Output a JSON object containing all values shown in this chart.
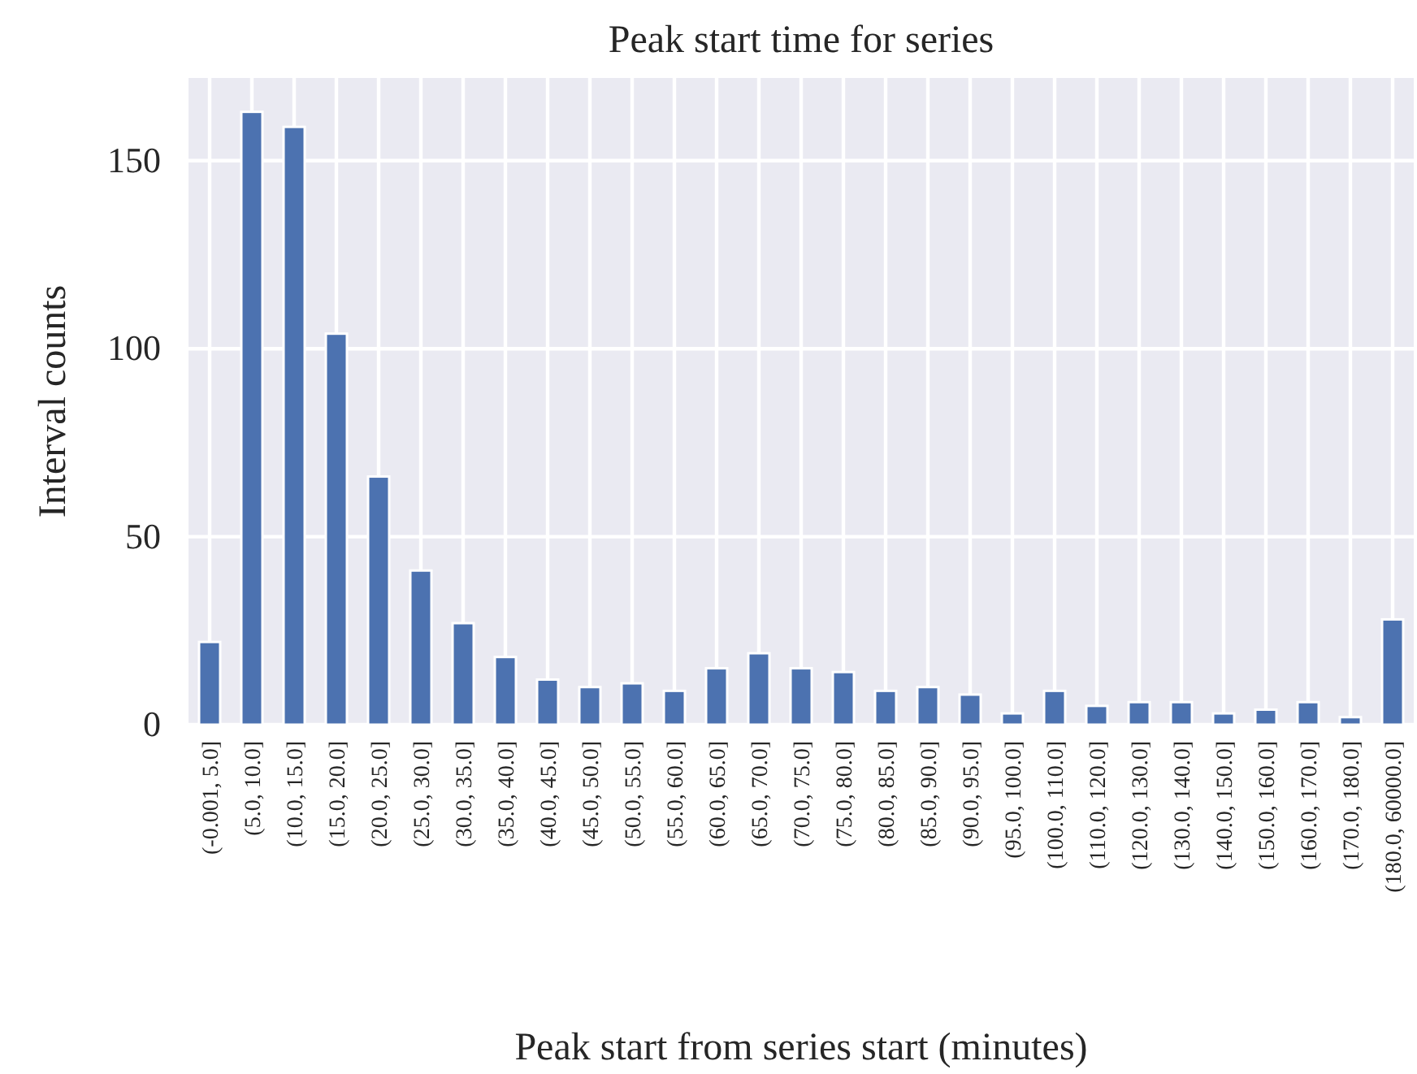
{
  "chart_data": {
    "type": "bar",
    "title": "Peak start time for series",
    "xlabel": "Peak start from series start (minutes)",
    "ylabel": "Interval counts",
    "categories": [
      "(-0.001, 5.0]",
      "(5.0, 10.0]",
      "(10.0, 15.0]",
      "(15.0, 20.0]",
      "(20.0, 25.0]",
      "(25.0, 30.0]",
      "(30.0, 35.0]",
      "(35.0, 40.0]",
      "(40.0, 45.0]",
      "(45.0, 50.0]",
      "(50.0, 55.0]",
      "(55.0, 60.0]",
      "(60.0, 65.0]",
      "(65.0, 70.0]",
      "(70.0, 75.0]",
      "(75.0, 80.0]",
      "(80.0, 85.0]",
      "(85.0, 90.0]",
      "(90.0, 95.0]",
      "(95.0, 100.0]",
      "(100.0, 110.0]",
      "(110.0, 120.0]",
      "(120.0, 130.0]",
      "(130.0, 140.0]",
      "(140.0, 150.0]",
      "(150.0, 160.0]",
      "(160.0, 170.0]",
      "(170.0, 180.0]",
      "(180.0, 60000.0]"
    ],
    "values": [
      22,
      163,
      159,
      104,
      66,
      41,
      27,
      18,
      12,
      10,
      11,
      9,
      15,
      19,
      15,
      14,
      9,
      10,
      8,
      3,
      9,
      5,
      6,
      6,
      3,
      4,
      6,
      2,
      28
    ],
    "color": "#4c72b0",
    "ylim": [
      0,
      172
    ],
    "yticks": [
      0,
      50,
      100,
      150
    ],
    "grid": true
  }
}
